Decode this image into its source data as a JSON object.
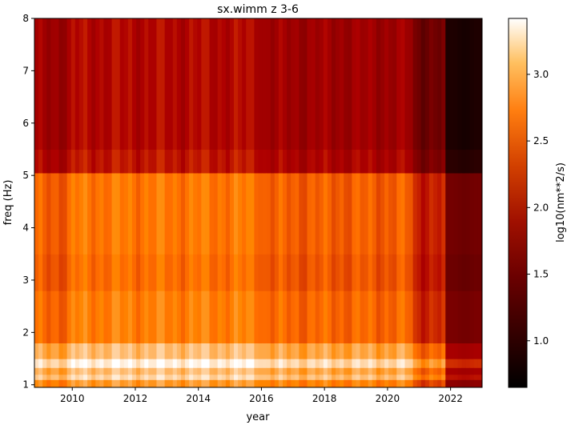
{
  "chart_data": {
    "type": "heatmap",
    "title": "sx.wimm z 3-6",
    "xlabel": "year",
    "ylabel": "freq (Hz)",
    "colorbar_label": "log10(nm**2/s)",
    "colormap": "gist_heat",
    "x_range": [
      2008.8,
      2023.0
    ],
    "y_range": [
      0.95,
      8.0
    ],
    "x_ticks": [
      2010,
      2012,
      2014,
      2016,
      2018,
      2020,
      2022
    ],
    "x_tick_labels": [
      "2010",
      "2012",
      "2014",
      "2016",
      "2018",
      "2020",
      "2022"
    ],
    "y_ticks": [
      1,
      2,
      3,
      4,
      5,
      6,
      7,
      8
    ],
    "y_tick_labels": [
      "1",
      "2",
      "3",
      "4",
      "5",
      "6",
      "7",
      "8"
    ],
    "color_range": [
      0.65,
      3.42
    ],
    "colorbar_ticks": [
      1.0,
      1.5,
      2.0,
      2.5,
      3.0
    ],
    "colorbar_tick_labels": [
      "1.0",
      "1.5",
      "2.0",
      "2.5",
      "3.0"
    ],
    "freq_band_values": [
      {
        "freq_min": 0.95,
        "freq_max": 1.1,
        "value": 2.7
      },
      {
        "freq_min": 1.1,
        "freq_max": 1.2,
        "value": 3.05
      },
      {
        "freq_min": 1.2,
        "freq_max": 1.33,
        "value": 2.9
      },
      {
        "freq_min": 1.33,
        "freq_max": 1.5,
        "value": 3.2
      },
      {
        "freq_min": 1.5,
        "freq_max": 1.8,
        "value": 2.9
      },
      {
        "freq_min": 1.8,
        "freq_max": 2.8,
        "value": 2.55
      },
      {
        "freq_min": 2.8,
        "freq_max": 3.5,
        "value": 2.45
      },
      {
        "freq_min": 3.5,
        "freq_max": 5.05,
        "value": 2.5
      },
      {
        "freq_min": 5.05,
        "freq_max": 5.5,
        "value": 1.95
      },
      {
        "freq_min": 5.5,
        "freq_max": 8.0,
        "value": 1.85
      }
    ],
    "period_adjustments": [
      {
        "x_min": 2008.8,
        "x_max": 2010.0,
        "offset": 0.0
      },
      {
        "x_min": 2010.0,
        "x_max": 2016.0,
        "offset": 0.15
      },
      {
        "x_min": 2016.0,
        "x_max": 2020.8,
        "offset": 0.0
      },
      {
        "x_min": 2020.8,
        "x_max": 2021.9,
        "offset": -0.35
      },
      {
        "x_min": 2021.9,
        "x_max": 2023.0,
        "offset": -1.0
      }
    ]
  }
}
